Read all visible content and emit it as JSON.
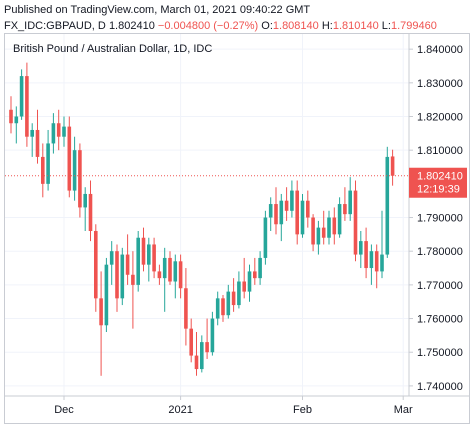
{
  "header": {
    "published": "Published on TradingView.com, March 01, 2021 09:40:22 GMT",
    "symbol": "FX_IDC:GBPAUD, D",
    "last": "1.802410",
    "change": "−0.004800 (−0.27%)",
    "o_label": "O:",
    "o_value": "1.808140",
    "h_label": "H:",
    "h_value": "1.810140",
    "l_label": "L:",
    "l_value": "1.799460"
  },
  "colors": {
    "up": "#26a69a",
    "down": "#ef5350",
    "price_line": "#ef5350",
    "grid": "#f0f3fa",
    "axis_text": "#131722",
    "background": "#ffffff"
  },
  "chart_data": {
    "type": "candlestick",
    "title": "British Pound / Australian Dollar, 1D, IDC",
    "ylim": [
      1.737,
      1.8445
    ],
    "y_ticks": [
      {
        "value": 1.84,
        "label": "1.840000"
      },
      {
        "value": 1.83,
        "label": "1.830000"
      },
      {
        "value": 1.82,
        "label": "1.820000"
      },
      {
        "value": 1.81,
        "label": "1.810000"
      },
      {
        "value": 1.79,
        "label": "1.790000"
      },
      {
        "value": 1.78,
        "label": "1.780000"
      },
      {
        "value": 1.77,
        "label": "1.770000"
      },
      {
        "value": 1.76,
        "label": "1.760000"
      },
      {
        "value": 1.75,
        "label": "1.750000"
      },
      {
        "value": 1.74,
        "label": "1.740000"
      }
    ],
    "x_ticks": [
      {
        "index": 10,
        "label": "Dec"
      },
      {
        "index": 32,
        "label": "2021"
      },
      {
        "index": 55,
        "label": "Feb"
      },
      {
        "index": 74,
        "label": "Mar"
      }
    ],
    "last_price": {
      "value": 1.80241,
      "label": "1.802410",
      "countdown": "12:19:39"
    },
    "ohlc": [
      [
        1.822,
        1.826,
        1.815,
        1.818
      ],
      [
        1.818,
        1.823,
        1.812,
        1.82
      ],
      [
        1.82,
        1.834,
        1.819,
        1.832
      ],
      [
        1.832,
        1.836,
        1.811,
        1.814
      ],
      [
        1.814,
        1.818,
        1.808,
        1.816
      ],
      [
        1.816,
        1.822,
        1.806,
        1.808
      ],
      [
        1.808,
        1.812,
        1.796,
        1.8
      ],
      [
        1.8,
        1.816,
        1.798,
        1.812
      ],
      [
        1.812,
        1.821,
        1.809,
        1.818
      ],
      [
        1.818,
        1.822,
        1.81,
        1.814
      ],
      [
        1.814,
        1.82,
        1.811,
        1.817
      ],
      [
        1.817,
        1.82,
        1.796,
        1.798
      ],
      [
        1.798,
        1.814,
        1.795,
        1.81
      ],
      [
        1.81,
        1.812,
        1.79,
        1.793
      ],
      [
        1.793,
        1.799,
        1.786,
        1.797
      ],
      [
        1.797,
        1.801,
        1.783,
        1.786
      ],
      [
        1.786,
        1.788,
        1.762,
        1.766
      ],
      [
        1.766,
        1.774,
        1.743,
        1.758
      ],
      [
        1.758,
        1.778,
        1.756,
        1.776
      ],
      [
        1.776,
        1.783,
        1.77,
        1.78
      ],
      [
        1.78,
        1.782,
        1.762,
        1.766
      ],
      [
        1.766,
        1.781,
        1.764,
        1.779
      ],
      [
        1.779,
        1.785,
        1.77,
        1.773
      ],
      [
        1.773,
        1.78,
        1.757,
        1.77
      ],
      [
        1.77,
        1.786,
        1.768,
        1.784
      ],
      [
        1.784,
        1.787,
        1.774,
        1.776
      ],
      [
        1.776,
        1.784,
        1.771,
        1.782
      ],
      [
        1.782,
        1.784,
        1.772,
        1.774
      ],
      [
        1.774,
        1.776,
        1.77,
        1.772
      ],
      [
        1.772,
        1.781,
        1.762,
        1.778
      ],
      [
        1.778,
        1.78,
        1.77,
        1.771
      ],
      [
        1.771,
        1.779,
        1.766,
        1.777
      ],
      [
        1.777,
        1.779,
        1.766,
        1.769
      ],
      [
        1.769,
        1.775,
        1.752,
        1.757
      ],
      [
        1.757,
        1.76,
        1.747,
        1.749
      ],
      [
        1.749,
        1.756,
        1.743,
        1.745
      ],
      [
        1.745,
        1.755,
        1.744,
        1.753
      ],
      [
        1.753,
        1.76,
        1.748,
        1.75
      ],
      [
        1.75,
        1.762,
        1.749,
        1.76
      ],
      [
        1.76,
        1.768,
        1.758,
        1.766
      ],
      [
        1.766,
        1.767,
        1.759,
        1.761
      ],
      [
        1.761,
        1.77,
        1.76,
        1.768
      ],
      [
        1.768,
        1.772,
        1.762,
        1.764
      ],
      [
        1.764,
        1.774,
        1.763,
        1.771
      ],
      [
        1.771,
        1.778,
        1.766,
        1.768
      ],
      [
        1.768,
        1.776,
        1.765,
        1.774
      ],
      [
        1.774,
        1.778,
        1.77,
        1.772
      ],
      [
        1.772,
        1.78,
        1.77,
        1.778
      ],
      [
        1.778,
        1.792,
        1.776,
        1.79
      ],
      [
        1.79,
        1.796,
        1.786,
        1.794
      ],
      [
        1.794,
        1.799,
        1.785,
        1.788
      ],
      [
        1.788,
        1.797,
        1.783,
        1.795
      ],
      [
        1.795,
        1.799,
        1.789,
        1.792
      ],
      [
        1.792,
        1.801,
        1.79,
        1.798
      ],
      [
        1.798,
        1.801,
        1.782,
        1.785
      ],
      [
        1.785,
        1.797,
        1.784,
        1.795
      ],
      [
        1.795,
        1.798,
        1.787,
        1.79
      ],
      [
        1.79,
        1.791,
        1.78,
        1.782
      ],
      [
        1.782,
        1.789,
        1.779,
        1.787
      ],
      [
        1.787,
        1.792,
        1.782,
        1.784
      ],
      [
        1.784,
        1.792,
        1.782,
        1.79
      ],
      [
        1.79,
        1.793,
        1.782,
        1.785
      ],
      [
        1.785,
        1.796,
        1.784,
        1.794
      ],
      [
        1.794,
        1.799,
        1.789,
        1.791
      ],
      [
        1.791,
        1.802,
        1.789,
        1.798
      ],
      [
        1.798,
        1.801,
        1.777,
        1.779
      ],
      [
        1.779,
        1.786,
        1.775,
        1.783
      ],
      [
        1.783,
        1.787,
        1.772,
        1.775
      ],
      [
        1.775,
        1.782,
        1.77,
        1.78
      ],
      [
        1.78,
        1.782,
        1.769,
        1.774
      ],
      [
        1.774,
        1.792,
        1.772,
        1.779
      ],
      [
        1.779,
        1.811,
        1.778,
        1.808
      ],
      [
        1.80814,
        1.81014,
        1.79946,
        1.80241
      ]
    ]
  }
}
